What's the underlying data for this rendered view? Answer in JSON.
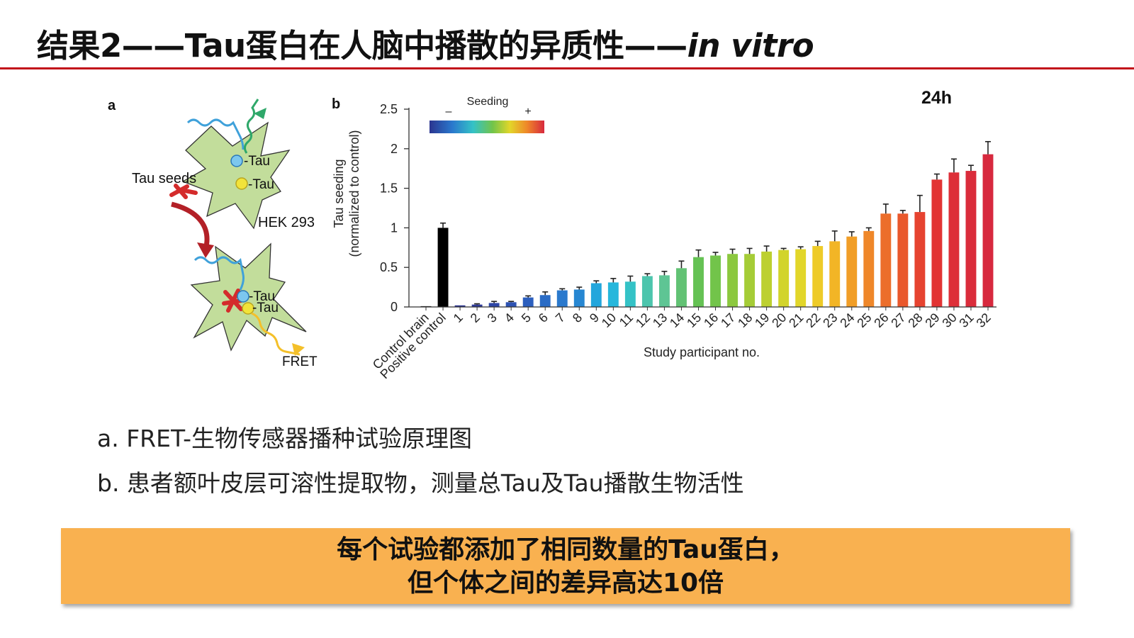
{
  "title": {
    "main": "结果2——Tau蛋白在人脑中播散的异质性——",
    "italic": "in vitro"
  },
  "panel_a": {
    "label": "a",
    "tau_seeds": "Tau seeds",
    "tau_1": "-Tau",
    "tau_2": "-Tau",
    "hek": "HEK 293",
    "tau_3": "-Tau",
    "tau_4": "-Tau",
    "fret": "FRET"
  },
  "captions": {
    "a": "a. FRET-生物传感器播种试验原理图",
    "b": "b. 患者额叶皮层可溶性提取物，测量总Tau及Tau播散生物活性"
  },
  "callout": {
    "line1": "每个试验都添加了相同数量的Tau蛋白，",
    "line2": "但个体之间的差异高达10倍"
  },
  "chart_data": {
    "type": "bar",
    "panel_label": "b",
    "timepoint": "24h",
    "legend": {
      "title": "Seeding",
      "minus": "–",
      "plus": "+"
    },
    "ylabel_line1": "Tau seeding",
    "ylabel_line2": "(normalized to control)",
    "xlabel": "Study participant no.",
    "ylim": [
      0,
      2.5
    ],
    "yticks": [
      "0",
      "0.5",
      "1",
      "1.5",
      "2",
      "2.5"
    ],
    "categories": [
      "Control brain",
      "Positive control",
      "1",
      "2",
      "3",
      "4",
      "5",
      "6",
      "7",
      "8",
      "9",
      "10",
      "11",
      "12",
      "13",
      "14",
      "15",
      "16",
      "17",
      "18",
      "19",
      "20",
      "21",
      "22",
      "23",
      "24",
      "25",
      "26",
      "27",
      "28",
      "29",
      "30",
      "31",
      "32"
    ],
    "values": [
      0.01,
      1.0,
      0.02,
      0.03,
      0.05,
      0.06,
      0.12,
      0.15,
      0.21,
      0.22,
      0.3,
      0.31,
      0.32,
      0.39,
      0.4,
      0.49,
      0.63,
      0.65,
      0.67,
      0.67,
      0.7,
      0.72,
      0.73,
      0.77,
      0.83,
      0.89,
      0.96,
      1.18,
      1.18,
      1.2,
      1.61,
      1.7,
      1.72,
      1.93
    ],
    "errors": [
      0.0,
      0.06,
      0.0,
      0.01,
      0.02,
      0.01,
      0.02,
      0.04,
      0.02,
      0.03,
      0.03,
      0.05,
      0.07,
      0.03,
      0.05,
      0.09,
      0.09,
      0.04,
      0.06,
      0.07,
      0.07,
      0.02,
      0.03,
      0.06,
      0.13,
      0.06,
      0.04,
      0.12,
      0.04,
      0.21,
      0.07,
      0.17,
      0.07,
      0.16
    ],
    "colors": [
      "#222222",
      "#000000",
      "#2b3590",
      "#2f3b98",
      "#2e46a6",
      "#2d52b2",
      "#2c5fbe",
      "#2a6cc6",
      "#2a79cd",
      "#2787d2",
      "#23a6dc",
      "#26b7dc",
      "#34c2c6",
      "#4dc5ad",
      "#5ec594",
      "#62c274",
      "#65c254",
      "#72c44a",
      "#8cc83f",
      "#a5cc37",
      "#bdd030",
      "#d2d42b",
      "#e2d62a",
      "#eecb28",
      "#f2b526",
      "#f19e27",
      "#ef8729",
      "#ec6e2b",
      "#e9582c",
      "#e64330",
      "#e23434",
      "#dd2f38",
      "#da2c3b",
      "#d7293e"
    ]
  }
}
